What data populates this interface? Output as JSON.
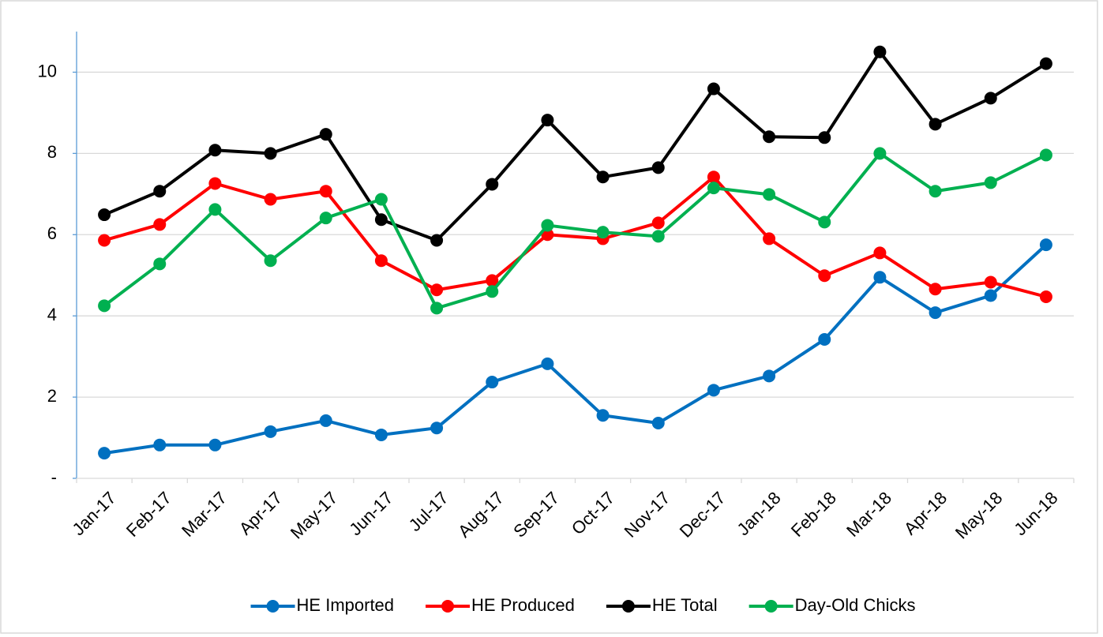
{
  "chart_data": {
    "type": "line",
    "categories": [
      "Jan-17",
      "Feb-17",
      "Mar-17",
      "Apr-17",
      "May-17",
      "Jun-17",
      "Jul-17",
      "Aug-17",
      "Sep-17",
      "Oct-17",
      "Nov-17",
      "Dec-17",
      "Jan-18",
      "Feb-18",
      "Mar-18",
      "Apr-18",
      "May-18",
      "Jun-18"
    ],
    "series": [
      {
        "name": "HE Imported",
        "color": "#0070c0",
        "values": [
          0.62,
          0.82,
          0.82,
          1.15,
          1.42,
          1.07,
          1.24,
          2.37,
          2.82,
          1.55,
          1.36,
          2.17,
          2.52,
          3.42,
          4.95,
          4.08,
          4.5,
          5.75
        ]
      },
      {
        "name": "HE Produced",
        "color": "#ff0000",
        "values": [
          5.86,
          6.25,
          7.26,
          6.87,
          7.07,
          5.36,
          4.64,
          4.87,
          6.0,
          5.9,
          6.29,
          7.42,
          5.9,
          4.99,
          5.55,
          4.66,
          4.83,
          4.47
        ]
      },
      {
        "name": "HE Total",
        "color": "#000000",
        "values": [
          6.49,
          7.07,
          8.08,
          8.0,
          8.47,
          6.37,
          5.86,
          7.24,
          8.82,
          7.42,
          7.65,
          9.59,
          8.41,
          8.39,
          10.5,
          8.72,
          9.36,
          10.21
        ]
      },
      {
        "name": "Day-Old Chicks",
        "color": "#00b050",
        "values": [
          4.25,
          5.28,
          6.62,
          5.36,
          6.41,
          6.87,
          4.19,
          4.6,
          6.23,
          6.06,
          5.96,
          7.15,
          6.99,
          6.31,
          8.0,
          7.07,
          7.28,
          7.96
        ]
      }
    ],
    "ylim": [
      0,
      11
    ],
    "yticks": [
      {
        "value": 0,
        "label": "-"
      },
      2,
      4,
      6,
      8,
      10
    ],
    "grid": true,
    "legend": "bottom"
  }
}
